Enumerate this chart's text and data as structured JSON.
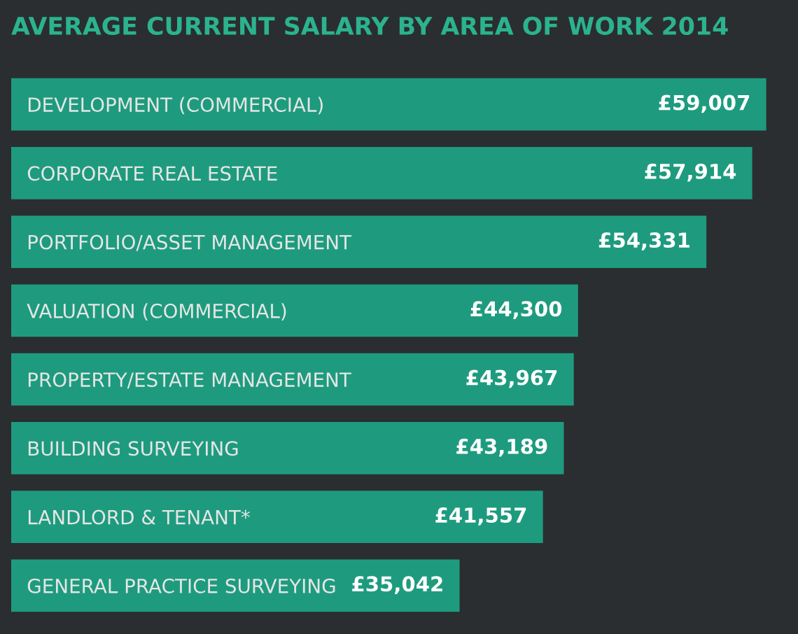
{
  "chart_data": {
    "type": "bar",
    "orientation": "horizontal",
    "title": "AVERAGE CURRENT SALARY BY AREA OF WORK 2014",
    "categories": [
      "DEVELOPMENT (COMMERCIAL)",
      "CORPORATE REAL ESTATE",
      "PORTFOLIO/ASSET MANAGEMENT",
      "VALUATION (COMMERCIAL)",
      "PROPERTY/ESTATE MANAGEMENT",
      "BUILDING SURVEYING",
      "LANDLORD & TENANT*",
      "GENERAL PRACTICE SURVEYING"
    ],
    "values": [
      59007,
      57914,
      54331,
      44300,
      43967,
      43189,
      41557,
      35042
    ],
    "value_labels": [
      "£59,007",
      "£57,914",
      "£54,331",
      "£44,300",
      "£43,967",
      "£43,189",
      "£41,557",
      "£35,042"
    ],
    "color": "#1e9b7e",
    "grid": false,
    "legend": false
  }
}
